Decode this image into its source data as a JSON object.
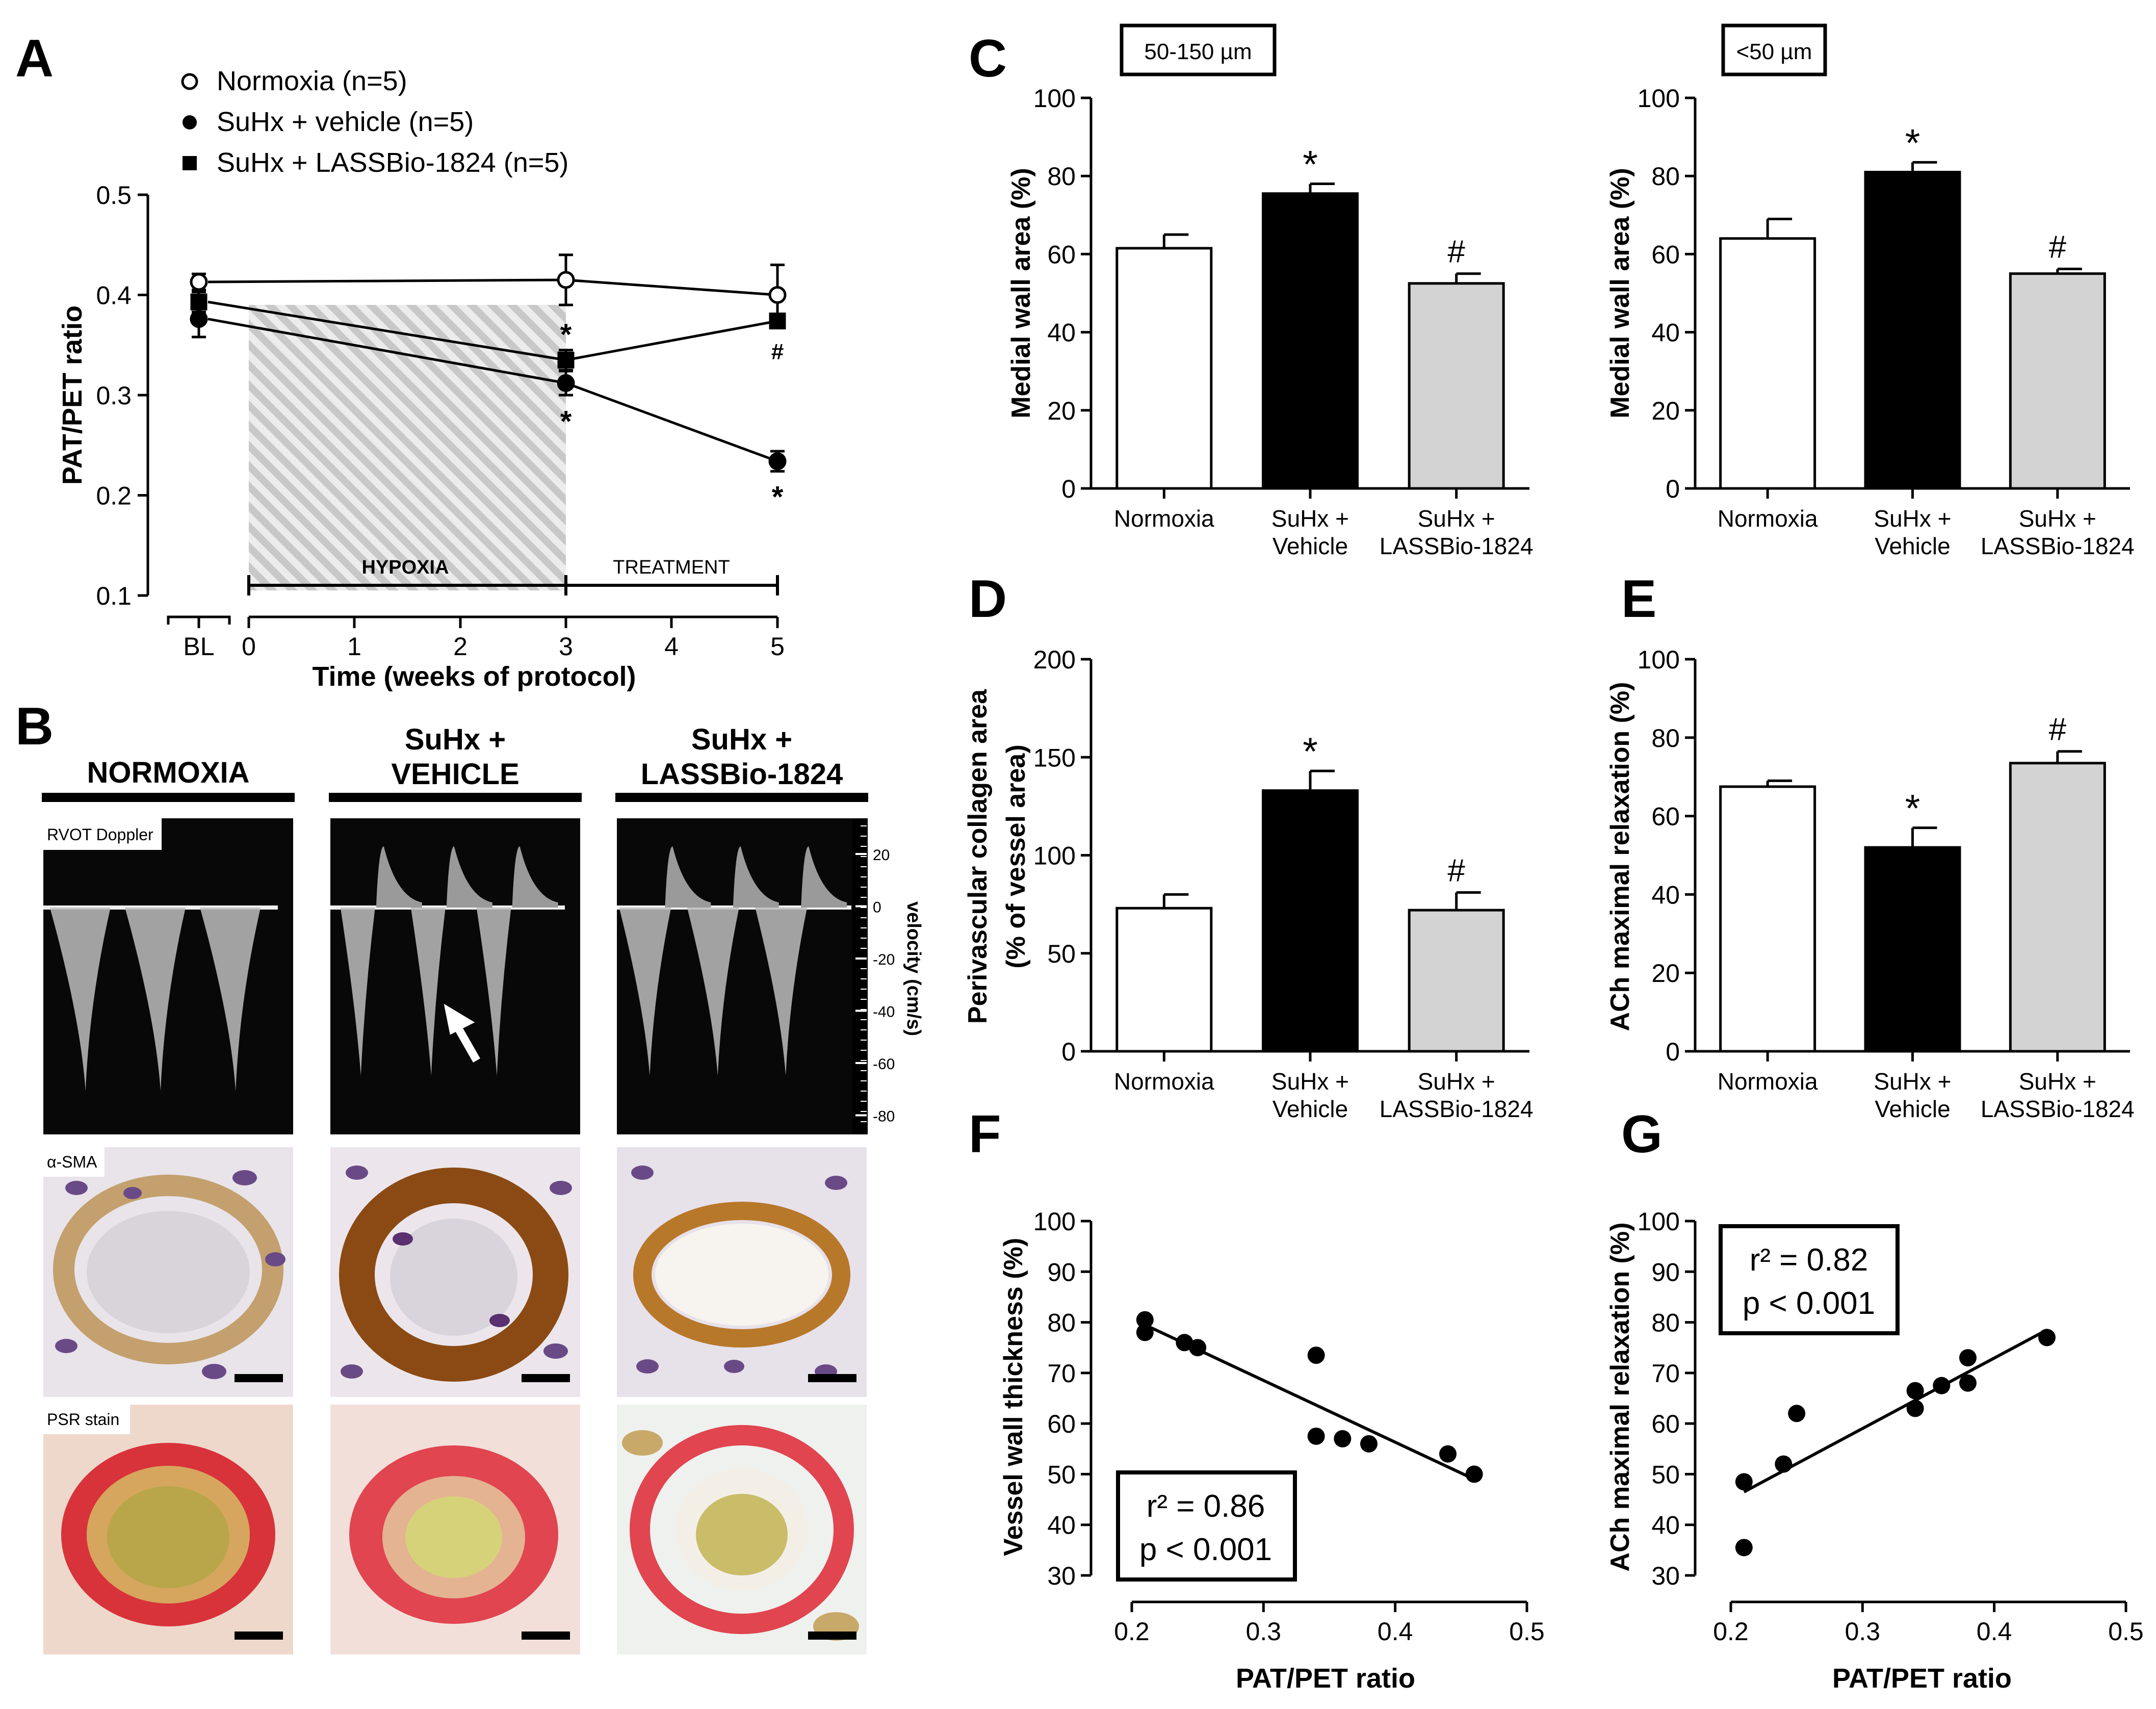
{
  "colors": {
    "normoxia_fill": "#ffffff",
    "vehicle_fill": "#000000",
    "lassbio_fill": "#d3d3d3",
    "hypoxia_hatch": "#c8c8c8",
    "psr_red": "#d8333a",
    "sma_brown": "#8b4a14",
    "nuclei_purple": "#6a4a86"
  },
  "panel_labels": {
    "A": "A",
    "B": "B",
    "C": "C",
    "D": "D",
    "E": "E",
    "F": "F",
    "G": "G"
  },
  "chart_data": [
    {
      "id": "A",
      "type": "line",
      "ylabel": "PAT/PET ratio",
      "xlabel": "Time (weeks of protocol)",
      "ylim": [
        0.1,
        0.5
      ],
      "yticks": [
        "0.1",
        "0.2",
        "0.3",
        "0.4",
        "0.5"
      ],
      "xticks": [
        "BL",
        "0",
        "1",
        "2",
        "3",
        "4",
        "5"
      ],
      "legend": [
        {
          "marker": "open-circle",
          "label": "Normoxia (n=5)"
        },
        {
          "marker": "filled-circle",
          "label": "SuHx + vehicle (n=5)"
        },
        {
          "marker": "filled-square",
          "label": "SuHx + LASSBio-1824 (n=5)"
        }
      ],
      "series": [
        {
          "name": "Normoxia (n=5)",
          "x": [
            "BL",
            3,
            5
          ],
          "values": [
            0.413,
            0.415,
            0.4
          ],
          "errors": [
            0.008,
            0.025,
            0.03
          ]
        },
        {
          "name": "SuHx + vehicle (n=5)",
          "x": [
            "BL",
            3,
            5
          ],
          "values": [
            0.376,
            0.312,
            0.234
          ],
          "errors": [
            0.018,
            0.012,
            0.01
          ]
        },
        {
          "name": "SuHx + LASSBio-1824 (n=5)",
          "x": [
            "BL",
            3,
            5
          ],
          "values": [
            0.393,
            0.335,
            0.374
          ],
          "errors": [
            0.01,
            0.01,
            0.007
          ]
        }
      ],
      "annotations": [
        "*",
        "*",
        "#",
        "*"
      ],
      "phases": [
        {
          "label": "HYPOXIA",
          "from": 0,
          "to": 3
        },
        {
          "label": "TREATMENT",
          "from": 3,
          "to": 5
        }
      ]
    },
    {
      "id": "C1",
      "type": "bar",
      "box_label": "50-150 µm",
      "ylabel": "Medial wall area (%)",
      "ylim": [
        0,
        100
      ],
      "yticks": [
        "0",
        "20",
        "40",
        "60",
        "80",
        "100"
      ],
      "categories": [
        [
          "Normoxia"
        ],
        [
          "SuHx +",
          "Vehicle"
        ],
        [
          "SuHx +",
          "LASSBio-1824"
        ]
      ],
      "values": [
        61.5,
        75.5,
        52.5
      ],
      "errors": [
        3.5,
        2.5,
        2.5
      ],
      "annotations": [
        "",
        "*",
        "#"
      ]
    },
    {
      "id": "C2",
      "type": "bar",
      "box_label": "<50 µm",
      "ylabel": "Medial wall area (%)",
      "ylim": [
        0,
        100
      ],
      "yticks": [
        "0",
        "20",
        "40",
        "60",
        "80",
        "100"
      ],
      "categories": [
        [
          "Normoxia"
        ],
        [
          "SuHx +",
          "Vehicle"
        ],
        [
          "SuHx +",
          "LASSBio-1824"
        ]
      ],
      "values": [
        64,
        81,
        55
      ],
      "errors": [
        5,
        2.5,
        1.2
      ],
      "annotations": [
        "",
        "*",
        "#"
      ]
    },
    {
      "id": "D",
      "type": "bar",
      "ylabel": [
        "Perivascular collagen area",
        "(% of vessel area)"
      ],
      "ylim": [
        0,
        200
      ],
      "yticks": [
        "0",
        "50",
        "100",
        "150",
        "200"
      ],
      "categories": [
        [
          "Normoxia"
        ],
        [
          "SuHx +",
          "Vehicle"
        ],
        [
          "SuHx +",
          "LASSBio-1824"
        ]
      ],
      "values": [
        73,
        133,
        72
      ],
      "errors": [
        7,
        10,
        9
      ],
      "annotations": [
        "",
        "*",
        "#"
      ]
    },
    {
      "id": "E",
      "type": "bar",
      "ylabel": "ACh maximal relaxation (%)",
      "ylim": [
        0,
        100
      ],
      "yticks": [
        "0",
        "20",
        "40",
        "60",
        "80",
        "100"
      ],
      "categories": [
        [
          "Normoxia"
        ],
        [
          "SuHx +",
          "Vehicle"
        ],
        [
          "SuHx +",
          "LASSBio-1824"
        ]
      ],
      "values": [
        67.5,
        52,
        73.5
      ],
      "errors": [
        1.5,
        5,
        3
      ],
      "annotations": [
        "",
        "*",
        "#"
      ]
    },
    {
      "id": "F",
      "type": "scatter",
      "ylabel": "Vessel wall thickness (%)",
      "xlabel": "PAT/PET ratio",
      "xlim": [
        0.2,
        0.5
      ],
      "ylim": [
        30,
        100
      ],
      "xticks": [
        "0.2",
        "0.3",
        "0.4",
        "0.5"
      ],
      "yticks": [
        "30",
        "40",
        "50",
        "60",
        "70",
        "80",
        "90",
        "100"
      ],
      "points": [
        [
          0.21,
          80.5
        ],
        [
          0.21,
          78
        ],
        [
          0.24,
          76
        ],
        [
          0.25,
          75
        ],
        [
          0.34,
          73.5
        ],
        [
          0.34,
          57.5
        ],
        [
          0.36,
          57
        ],
        [
          0.38,
          56
        ],
        [
          0.44,
          54
        ],
        [
          0.46,
          50
        ]
      ],
      "fit": [
        [
          0.21,
          79.5
        ],
        [
          0.46,
          49
        ]
      ],
      "stats": [
        "r² = 0.86",
        "p < 0.001"
      ]
    },
    {
      "id": "G",
      "type": "scatter",
      "ylabel": "ACh maximal relaxation (%)",
      "xlabel": "PAT/PET ratio",
      "xlim": [
        0.2,
        0.5
      ],
      "ylim": [
        30,
        100
      ],
      "xticks": [
        "0.2",
        "0.3",
        "0.4",
        "0.5"
      ],
      "yticks": [
        "30",
        "40",
        "50",
        "60",
        "70",
        "80",
        "90",
        "100"
      ],
      "points": [
        [
          0.21,
          35.5
        ],
        [
          0.21,
          48.5
        ],
        [
          0.24,
          52
        ],
        [
          0.25,
          62
        ],
        [
          0.34,
          66.5
        ],
        [
          0.34,
          63
        ],
        [
          0.36,
          67.5
        ],
        [
          0.38,
          73
        ],
        [
          0.38,
          68
        ],
        [
          0.44,
          77
        ]
      ],
      "fit": [
        [
          0.21,
          46.5
        ],
        [
          0.44,
          78.5
        ]
      ],
      "stats": [
        "r² = 0.82",
        "p < 0.001"
      ]
    }
  ],
  "panel_b": {
    "columns": [
      [
        "NORMOXIA"
      ],
      [
        "SuHx +",
        "VEHICLE"
      ],
      [
        "SuHx +",
        "LASSBio-1824"
      ]
    ],
    "row_labels": [
      "RVOT Doppler",
      "α-SMA",
      "PSR stain"
    ],
    "velocity_label": "velocity (cm/s)",
    "velocity_ticks": [
      "20",
      "0",
      "-20",
      "-40",
      "-60",
      "-80"
    ]
  }
}
